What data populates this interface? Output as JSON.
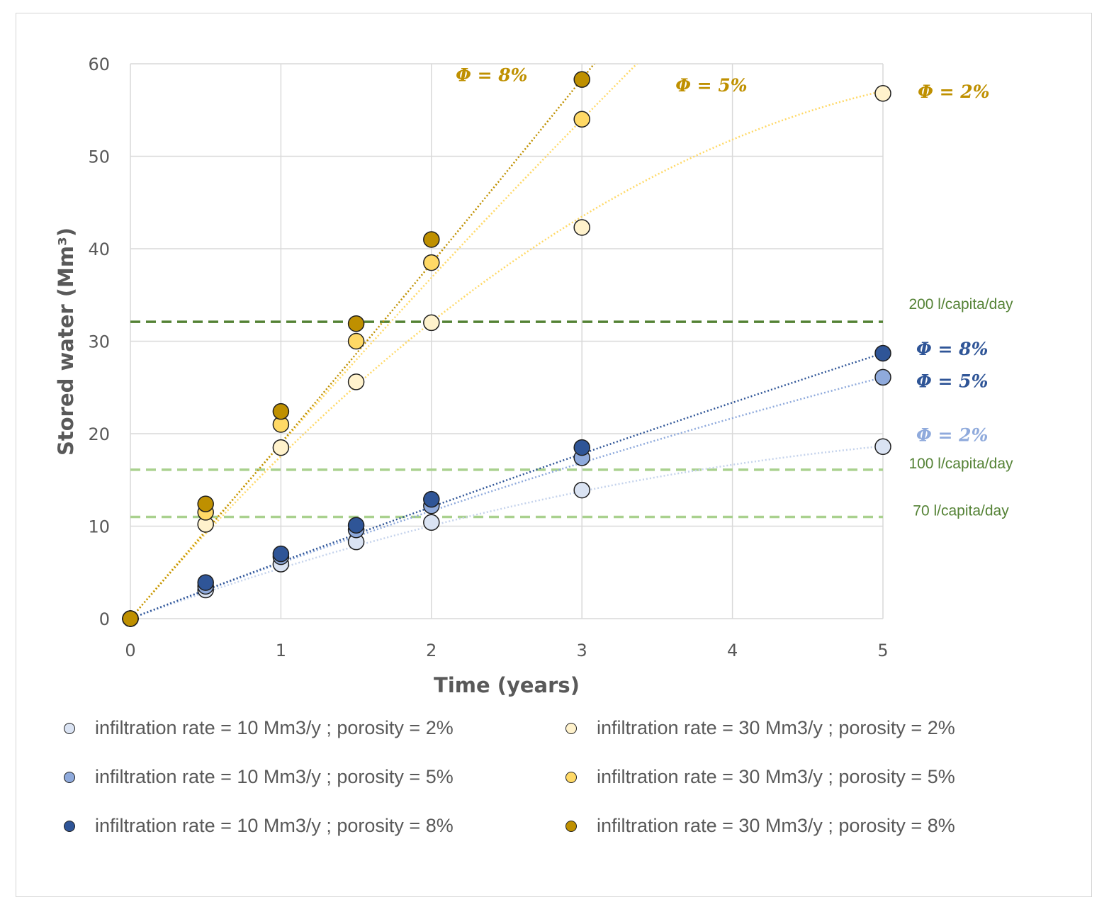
{
  "chart_data": {
    "type": "scatter",
    "xlabel": "Time (years)",
    "ylabel": "Stored water (Mm³)",
    "xlim": [
      0,
      5
    ],
    "ylim": [
      0,
      60
    ],
    "xticks": [
      "0",
      "1",
      "2",
      "3",
      "4",
      "5"
    ],
    "yticks": [
      "0",
      "10",
      "20",
      "30",
      "40",
      "50",
      "60"
    ],
    "grid": true,
    "legend_position": "bottom",
    "series": [
      {
        "name": "infiltration rate = 10 Mm3/y ; porosity = 2%",
        "color": "#dae3f3",
        "x": [
          0,
          0.5,
          1,
          1.5,
          2,
          3,
          5
        ],
        "y": [
          0,
          3.1,
          5.9,
          8.3,
          10.4,
          13.9,
          18.6
        ]
      },
      {
        "name": "infiltration rate = 10 Mm3/y ; porosity = 5%",
        "color": "#8faadc",
        "x": [
          0,
          0.5,
          1,
          1.5,
          2,
          3,
          5
        ],
        "y": [
          0,
          3.5,
          6.7,
          9.6,
          12.2,
          17.4,
          26.1
        ]
      },
      {
        "name": "infiltration rate = 10 Mm3/y ; porosity = 8%",
        "color": "#2f5597",
        "x": [
          0,
          0.5,
          1,
          1.5,
          2,
          3,
          5
        ],
        "y": [
          0,
          3.9,
          7.0,
          10.1,
          12.9,
          18.5,
          28.7
        ]
      },
      {
        "name": "infiltration rate = 30 Mm3/y ; porosity = 2%",
        "color": "#fff2cc",
        "x": [
          0,
          0.5,
          1,
          1.5,
          2,
          3,
          5
        ],
        "y": [
          0,
          10.2,
          18.5,
          25.6,
          32.0,
          42.3,
          56.8
        ]
      },
      {
        "name": "infiltration rate = 30 Mm3/y ; porosity = 5%",
        "color": "#ffd966",
        "x": [
          0,
          0.5,
          1,
          1.5,
          2,
          3
        ],
        "y": [
          0,
          11.5,
          21.0,
          30.0,
          38.5,
          54.0
        ]
      },
      {
        "name": "infiltration rate = 30 Mm3/y ; porosity = 8%",
        "color": "#bf9000",
        "x": [
          0,
          0.5,
          1,
          1.5,
          2,
          3
        ],
        "y": [
          0,
          12.4,
          22.4,
          31.9,
          41.0,
          58.3
        ]
      }
    ],
    "trendlines": [
      {
        "color": "#c5d3ec",
        "coef": [
          -0.43,
          5.88,
          0
        ]
      },
      {
        "color": "#8faadc",
        "coef": [
          -0.2,
          6.22,
          0
        ]
      },
      {
        "color": "#2f5597",
        "coef": [
          -0.1,
          6.24,
          0
        ]
      },
      {
        "color": "#ffd966",
        "coef": [
          -1.54,
          19.11,
          0
        ]
      },
      {
        "color": "#ffd966",
        "coef": [
          -0.44,
          19.31,
          0
        ]
      },
      {
        "color": "#bf9000",
        "coef": [
          0.24,
          18.73,
          0
        ]
      }
    ],
    "reference_lines": [
      {
        "label": "200 l/capita/day",
        "value": 32.1,
        "color": "#548235"
      },
      {
        "label": "100 l/capita/day",
        "value": 16.1,
        "color": "#a9d18e"
      },
      {
        "label": "70 l/capita/day",
        "value": 11.0,
        "color": "#a9d18e"
      }
    ],
    "annotations": [
      {
        "text": "Φ = 8%",
        "color": "#bf9000",
        "x": 2.4,
        "y": 58.8
      },
      {
        "text": "Φ = 5%",
        "color": "#bf9000",
        "x": 3.86,
        "y": 57.7
      },
      {
        "text": "Φ = 2%",
        "color": "#bf9000",
        "x": 5.47,
        "y": 57.0
      },
      {
        "text": "Φ = 8%",
        "color": "#2f5597",
        "x": 5.46,
        "y": 29.2
      },
      {
        "text": "Φ = 5%",
        "color": "#2f5597",
        "x": 5.46,
        "y": 25.7
      },
      {
        "text": "Φ = 2%",
        "color": "#8faadc",
        "x": 5.46,
        "y": 19.9
      }
    ]
  }
}
